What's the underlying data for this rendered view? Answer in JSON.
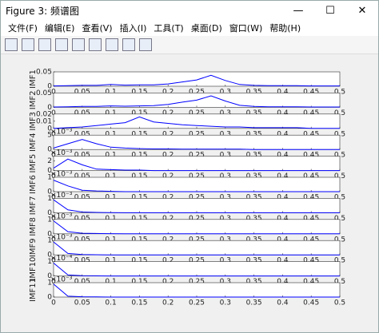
{
  "window": {
    "title": "Figure 3: 频谱图"
  },
  "menu": [
    "文件(F)",
    "编辑(E)",
    "查看(V)",
    "插入(I)",
    "工具(T)",
    "桌面(D)",
    "窗口(W)",
    "帮助(H)"
  ],
  "chart_data": [
    {
      "type": "line",
      "ylabel": "IMF1",
      "x": [
        0,
        0.025,
        0.05,
        0.075,
        0.1,
        0.125,
        0.15,
        0.175,
        0.2,
        0.225,
        0.25,
        0.275,
        0.3,
        0.325,
        0.35,
        0.375,
        0.4,
        0.425,
        0.45,
        0.475,
        0.5
      ],
      "values": [
        0.001,
        0.002,
        0.003,
        0.003,
        0.006,
        0.004,
        0.005,
        0.005,
        0.008,
        0.015,
        0.022,
        0.038,
        0.02,
        0.006,
        0.003,
        0.002,
        0.002,
        0.002,
        0.001,
        0.001,
        0.001
      ],
      "color": "#0000ff",
      "xlim": [
        0,
        0.5
      ],
      "xticks": [
        0,
        0.05,
        0.1,
        0.15,
        0.2,
        0.25,
        0.3,
        0.35,
        0.4,
        0.45,
        0.5
      ],
      "ylim": [
        0,
        0.05
      ],
      "yticks": [
        0,
        0.05
      ]
    },
    {
      "type": "line",
      "ylabel": "IMF2",
      "x": [
        0,
        0.025,
        0.05,
        0.075,
        0.1,
        0.125,
        0.15,
        0.175,
        0.2,
        0.225,
        0.25,
        0.275,
        0.3,
        0.325,
        0.35,
        0.375,
        0.4,
        0.425,
        0.45,
        0.475,
        0.5
      ],
      "values": [
        0.001,
        0.002,
        0.003,
        0.003,
        0.005,
        0.004,
        0.005,
        0.006,
        0.01,
        0.018,
        0.025,
        0.04,
        0.022,
        0.007,
        0.003,
        0.002,
        0.002,
        0.002,
        0.001,
        0.001,
        0.001
      ],
      "color": "#0000ff",
      "xlim": [
        0,
        0.5
      ],
      "xticks": [
        0,
        0.05,
        0.1,
        0.15,
        0.2,
        0.25,
        0.3,
        0.35,
        0.4,
        0.45,
        0.5
      ],
      "ylim": [
        0,
        0.05
      ],
      "yticks": [
        0,
        0.05
      ]
    },
    {
      "type": "line",
      "ylabel": "IMF3",
      "x": [
        0,
        0.025,
        0.05,
        0.075,
        0.1,
        0.125,
        0.15,
        0.175,
        0.2,
        0.225,
        0.25,
        0.275,
        0.3,
        0.325,
        0.35,
        0.375,
        0.4,
        0.425,
        0.45,
        0.475,
        0.5
      ],
      "values": [
        0,
        0.001,
        0.002,
        0.004,
        0.006,
        0.008,
        0.016,
        0.009,
        0.007,
        0.005,
        0.004,
        0.003,
        0.002,
        0.002,
        0.001,
        0.001,
        0.001,
        0.001,
        0,
        0,
        0
      ],
      "color": "#0000ff",
      "xlim": [
        0,
        0.5
      ],
      "xticks": [
        0,
        0.05,
        0.1,
        0.15,
        0.2,
        0.25,
        0.3,
        0.35,
        0.4,
        0.45,
        0.5
      ],
      "ylim": [
        0,
        0.02
      ],
      "yticks": [
        0,
        0.01,
        0.02
      ]
    },
    {
      "type": "line",
      "ylabel": "IMF4",
      "multiplier": "×10⁻³",
      "x": [
        0,
        0.025,
        0.05,
        0.075,
        0.1,
        0.125,
        0.15,
        0.175,
        0.2,
        0.225,
        0.25,
        0.275,
        0.3,
        0.325,
        0.35,
        0.375,
        0.4,
        0.425,
        0.45,
        0.475,
        0.5
      ],
      "values": [
        0.5,
        2,
        3.5,
        2,
        0.8,
        0.5,
        0.3,
        0.2,
        0.2,
        0.1,
        0.1,
        0.1,
        0.1,
        0.1,
        0,
        0,
        0,
        0,
        0,
        0,
        0
      ],
      "color": "#0000ff",
      "xlim": [
        0,
        0.5
      ],
      "xticks": [
        0,
        0.05,
        0.1,
        0.15,
        0.2,
        0.25,
        0.3,
        0.35,
        0.4,
        0.45,
        0.5
      ],
      "ylim": [
        0,
        5
      ],
      "yticks": [
        0,
        5
      ]
    },
    {
      "type": "line",
      "ylabel": "IMF5",
      "multiplier": "×10⁻³",
      "x": [
        0,
        0.025,
        0.05,
        0.075,
        0.1,
        0.125,
        0.15,
        0.175,
        0.2,
        0.225,
        0.25,
        0.275,
        0.3,
        0.325,
        0.35,
        0.375,
        0.4,
        0.425,
        0.45,
        0.475,
        0.5
      ],
      "values": [
        0.5,
        2.4,
        1.2,
        0.3,
        0.2,
        0.1,
        0.1,
        0,
        0,
        0,
        0,
        0,
        0,
        0,
        0,
        0,
        0,
        0,
        0,
        0,
        0
      ],
      "color": "#0000ff",
      "xlim": [
        0,
        0.5
      ],
      "xticks": [
        0,
        0.05,
        0.1,
        0.15,
        0.2,
        0.25,
        0.3,
        0.35,
        0.4,
        0.45,
        0.5
      ],
      "ylim": [
        0,
        3
      ],
      "yticks": [
        0,
        2
      ]
    },
    {
      "type": "line",
      "ylabel": "IMF6",
      "multiplier": "×10⁻³",
      "x": [
        0,
        0.025,
        0.05,
        0.075,
        0.1,
        0.125,
        0.15,
        0.175,
        0.2,
        0.225,
        0.25,
        0.275,
        0.3,
        0.325,
        0.35,
        0.375,
        0.4,
        0.425,
        0.45,
        0.475,
        0.5
      ],
      "values": [
        0.8,
        0.4,
        0.1,
        0.05,
        0.02,
        0,
        0,
        0,
        0,
        0,
        0,
        0,
        0,
        0,
        0,
        0,
        0,
        0,
        0,
        0,
        0
      ],
      "color": "#0000ff",
      "xlim": [
        0,
        0.5
      ],
      "xticks": [
        0,
        0.05,
        0.1,
        0.15,
        0.2,
        0.25,
        0.3,
        0.35,
        0.4,
        0.45,
        0.5
      ],
      "ylim": [
        0,
        1
      ],
      "yticks": [
        0,
        1
      ]
    },
    {
      "type": "line",
      "ylabel": "IMF7",
      "multiplier": "×10⁻³",
      "x": [
        0,
        0.025,
        0.05,
        0.075,
        0.1,
        0.125,
        0.15,
        0.175,
        0.2,
        0.225,
        0.25,
        0.275,
        0.3,
        0.325,
        0.35,
        0.375,
        0.4,
        0.425,
        0.45,
        0.475,
        0.5
      ],
      "values": [
        0.9,
        0.2,
        0.05,
        0.02,
        0.01,
        0,
        0,
        0,
        0,
        0,
        0,
        0,
        0,
        0,
        0,
        0,
        0,
        0,
        0,
        0,
        0
      ],
      "color": "#0000ff",
      "xlim": [
        0,
        0.5
      ],
      "xticks": [
        0,
        0.05,
        0.1,
        0.15,
        0.2,
        0.25,
        0.3,
        0.35,
        0.4,
        0.45,
        0.5
      ],
      "ylim": [
        0,
        1
      ],
      "yticks": [
        0,
        1
      ]
    },
    {
      "type": "line",
      "ylabel": "IMF8",
      "multiplier": "×10⁻³",
      "x": [
        0,
        0.025,
        0.05,
        0.075,
        0.1,
        0.125,
        0.15,
        0.175,
        0.2,
        0.225,
        0.25,
        0.275,
        0.3,
        0.325,
        0.35,
        0.375,
        0.4,
        0.425,
        0.45,
        0.475,
        0.5
      ],
      "values": [
        0.9,
        0.15,
        0.04,
        0.02,
        0.01,
        0,
        0,
        0,
        0,
        0,
        0,
        0,
        0,
        0,
        0,
        0,
        0,
        0,
        0,
        0,
        0
      ],
      "color": "#0000ff",
      "xlim": [
        0,
        0.5
      ],
      "xticks": [
        0,
        0.05,
        0.1,
        0.15,
        0.2,
        0.25,
        0.3,
        0.35,
        0.4,
        0.45,
        0.5
      ],
      "ylim": [
        0,
        1
      ],
      "yticks": [
        0,
        1
      ]
    },
    {
      "type": "line",
      "ylabel": "IMF9",
      "multiplier": "×10⁻³",
      "x": [
        0,
        0.025,
        0.05,
        0.075,
        0.1,
        0.125,
        0.15,
        0.175,
        0.2,
        0.225,
        0.25,
        0.275,
        0.3,
        0.325,
        0.35,
        0.375,
        0.4,
        0.425,
        0.45,
        0.475,
        0.5
      ],
      "values": [
        0.9,
        0.1,
        0.03,
        0.01,
        0,
        0,
        0,
        0,
        0,
        0,
        0,
        0,
        0,
        0,
        0,
        0,
        0,
        0,
        0,
        0,
        0
      ],
      "color": "#0000ff",
      "xlim": [
        0,
        0.5
      ],
      "xticks": [
        0,
        0.05,
        0.1,
        0.15,
        0.2,
        0.25,
        0.3,
        0.35,
        0.4,
        0.45,
        0.5
      ],
      "ylim": [
        0,
        1
      ],
      "yticks": [
        0,
        1
      ]
    },
    {
      "type": "line",
      "ylabel": "IMF10",
      "multiplier": "×10⁻⁴",
      "x": [
        0,
        0.025,
        0.05,
        0.075,
        0.1,
        0.125,
        0.15,
        0.175,
        0.2,
        0.225,
        0.25,
        0.275,
        0.3,
        0.325,
        0.35,
        0.375,
        0.4,
        0.425,
        0.45,
        0.475,
        0.5
      ],
      "values": [
        0.9,
        0.08,
        0.02,
        0.01,
        0,
        0,
        0,
        0,
        0,
        0,
        0,
        0,
        0,
        0,
        0,
        0,
        0,
        0,
        0,
        0,
        0
      ],
      "color": "#0000ff",
      "xlim": [
        0,
        0.5
      ],
      "xticks": [
        0,
        0.05,
        0.1,
        0.15,
        0.2,
        0.25,
        0.3,
        0.35,
        0.4,
        0.45,
        0.5
      ],
      "ylim": [
        0,
        1
      ],
      "yticks": [
        0,
        1
      ]
    },
    {
      "type": "line",
      "ylabel": "IMF11",
      "multiplier": "×10⁻³",
      "x": [
        0,
        0.025,
        0.05,
        0.075,
        0.1,
        0.125,
        0.15,
        0.175,
        0.2,
        0.225,
        0.25,
        0.275,
        0.3,
        0.325,
        0.35,
        0.375,
        0.4,
        0.425,
        0.45,
        0.475,
        0.5
      ],
      "values": [
        0.9,
        0.06,
        0.02,
        0.01,
        0,
        0,
        0,
        0,
        0,
        0,
        0,
        0,
        0,
        0,
        0,
        0,
        0,
        0,
        0,
        0,
        0
      ],
      "color": "#0000ff",
      "xlim": [
        0,
        0.5
      ],
      "xticks": [
        0,
        0.05,
        0.1,
        0.15,
        0.2,
        0.25,
        0.3,
        0.35,
        0.4,
        0.45,
        0.5
      ],
      "ylim": [
        0,
        1
      ],
      "yticks": [
        0,
        1
      ]
    }
  ]
}
